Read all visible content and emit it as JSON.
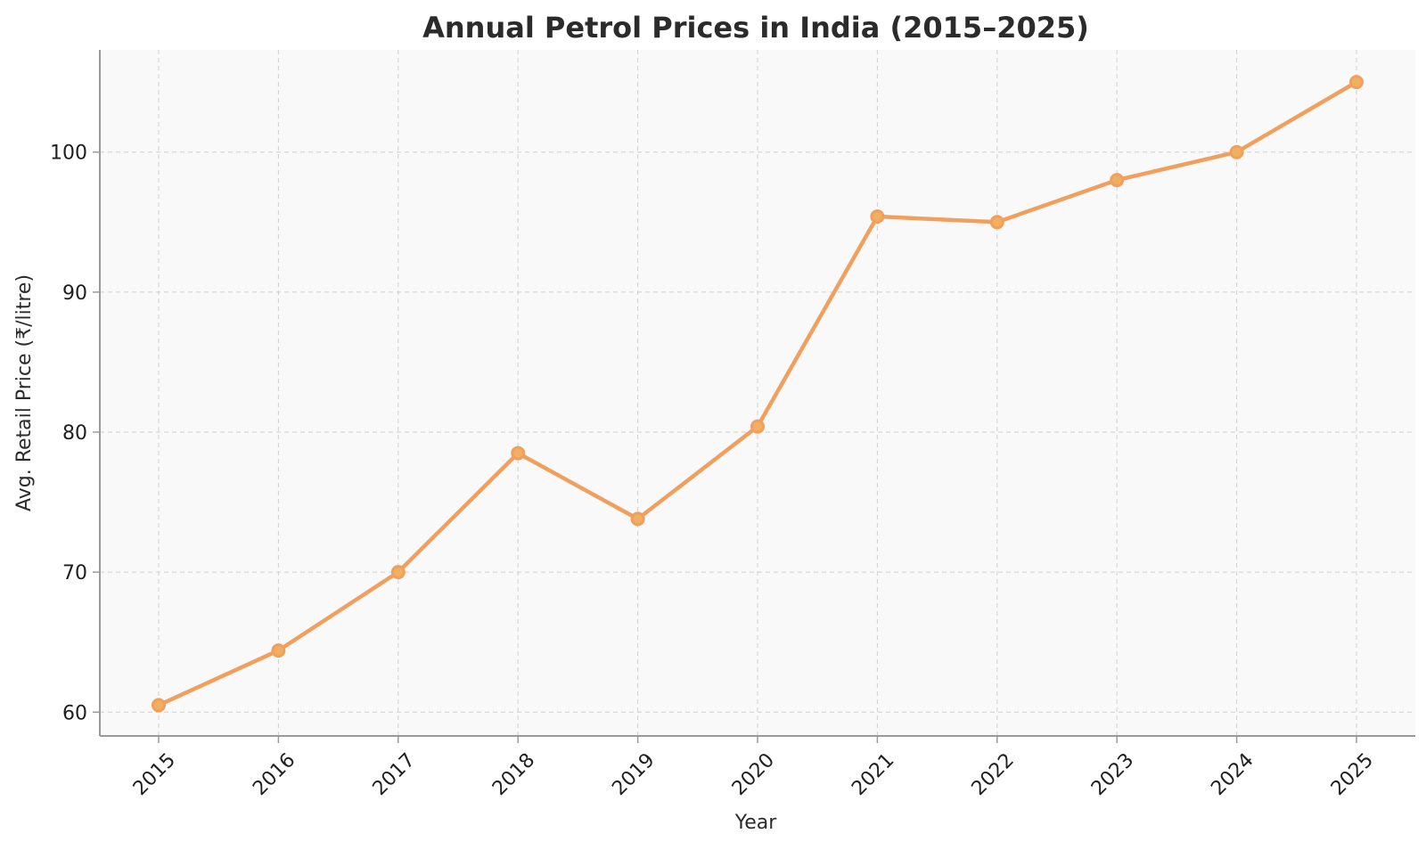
{
  "chart_data": {
    "type": "line",
    "title": "Annual Petrol Prices in India (2015–2025)",
    "xlabel": "Year",
    "ylabel": "Avg. Retail Price (₹/litre)",
    "categories": [
      "2015",
      "2016",
      "2017",
      "2018",
      "2019",
      "2020",
      "2021",
      "2022",
      "2023",
      "2024",
      "2025"
    ],
    "series": [
      {
        "name": "Avg. Retail Price",
        "values": [
          60.5,
          64.4,
          70.0,
          78.5,
          73.8,
          80.4,
          95.4,
          95.0,
          98.0,
          100.0,
          105.0
        ]
      }
    ],
    "ylim": [
      58.3,
      107.3
    ],
    "yticks": [
      60,
      70,
      80,
      90,
      100
    ],
    "grid": true,
    "colors": {
      "line": "#f0a05e",
      "marker_fill": "#f1b060",
      "marker_edge": "#f0a05e",
      "plot_background": "#f9f9f9",
      "axis": "#9a9a9a"
    }
  }
}
